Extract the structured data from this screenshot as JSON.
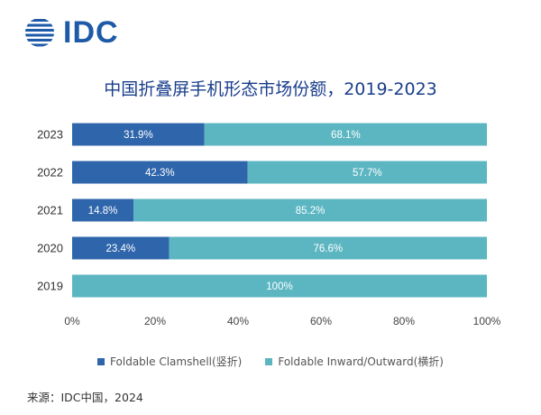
{
  "logo": {
    "text": "IDC"
  },
  "source": "来源：IDC中国，2024",
  "colors": {
    "clamshell": "#2f66ab",
    "inward": "#5cb6c2",
    "title": "#1a3e8c"
  },
  "chart_data": {
    "type": "bar",
    "orientation": "horizontal",
    "stacked": true,
    "title": "中国折叠屏手机形态市场份额，2019-2023",
    "categories": [
      "2023",
      "2022",
      "2021",
      "2020",
      "2019"
    ],
    "series": [
      {
        "name": "Foldable Clamshell(竖折)",
        "values": [
          31.9,
          42.3,
          14.8,
          23.4,
          0
        ],
        "labels": [
          "31.9%",
          "42.3%",
          "14.8%",
          "23.4%",
          ""
        ]
      },
      {
        "name": "Foldable Inward/Outward(横折)",
        "values": [
          68.1,
          57.7,
          85.2,
          76.6,
          100
        ],
        "labels": [
          "68.1%",
          "57.7%",
          "85.2%",
          "76.6%",
          "100%"
        ]
      }
    ],
    "xlim": [
      0,
      100
    ],
    "xticks": [
      "0%",
      "20%",
      "40%",
      "60%",
      "80%",
      "100%"
    ],
    "grid": false,
    "legend": "bottom"
  }
}
